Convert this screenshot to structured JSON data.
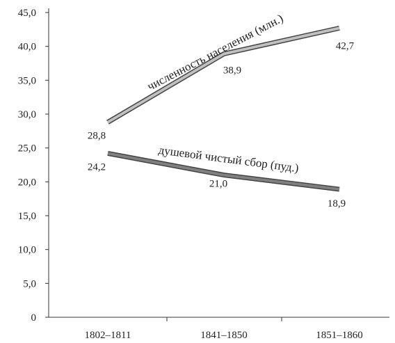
{
  "chart_data": {
    "type": "line",
    "categories": [
      "1802–1811",
      "1841–1850",
      "1851–1860"
    ],
    "ylim": [
      0,
      45
    ],
    "y_ticks": [
      "0",
      "5,0",
      "10,0",
      "15,0",
      "20,0",
      "25,0",
      "30,0",
      "35,0",
      "40,0",
      "45,0"
    ],
    "grid": false,
    "series": [
      {
        "name": "численность населения (млн.)",
        "values": [
          28.8,
          38.9,
          42.7
        ],
        "labels": [
          "28,8",
          "38,9",
          "42,7"
        ],
        "color": "#c0c0c0"
      },
      {
        "name": "душевой чистый сбор (пуд.)",
        "values": [
          24.2,
          21.0,
          18.9
        ],
        "labels": [
          "24,2",
          "21,0",
          "18,9"
        ],
        "color": "#808080"
      }
    ]
  }
}
